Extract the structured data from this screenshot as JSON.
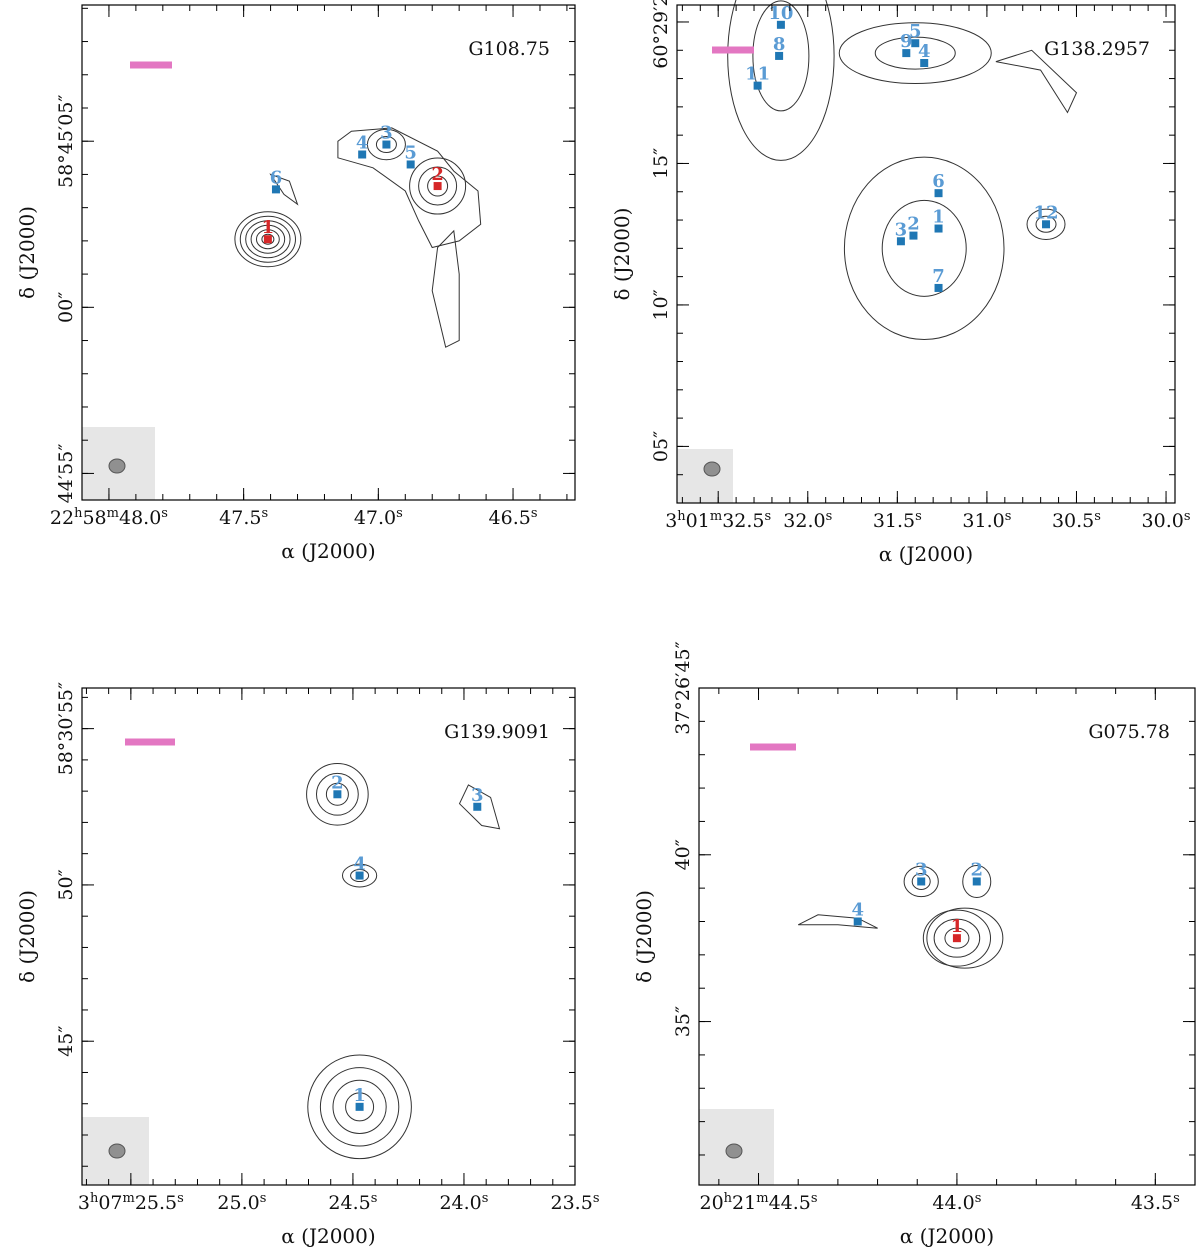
{
  "chart_data": [
    {
      "type": "scatter",
      "title": "G108.75",
      "xlabel": "α (J2000)",
      "ylabel": "δ (J2000)",
      "x_ticks": [
        {
          "value": 48.0,
          "label": "22h58m48.0s"
        },
        {
          "value": 47.5,
          "label": "47.5s"
        },
        {
          "value": 47.0,
          "label": "47.0s"
        },
        {
          "value": 46.5,
          "label": "46.5s"
        }
      ],
      "y_ticks": [
        {
          "value": 5,
          "label": "58°45′05″"
        },
        {
          "value": 0,
          "label": "00″"
        },
        {
          "value": -5,
          "label": "44′55″"
        }
      ],
      "xlim": [
        48.1,
        46.27
      ],
      "ylim": [
        -5.8,
        9.1
      ],
      "x_minor_step": 0.1,
      "y_minor_step": 1,
      "sources": [
        {
          "id": "1",
          "ra": 47.41,
          "dec": 2.05,
          "color": "#d62728"
        },
        {
          "id": "2",
          "ra": 46.78,
          "dec": 3.65,
          "color": "#d62728"
        },
        {
          "id": "3",
          "ra": 46.97,
          "dec": 4.9,
          "color": "#1f77b4"
        },
        {
          "id": "4",
          "ra": 47.06,
          "dec": 4.6,
          "color": "#1f77b4"
        },
        {
          "id": "5",
          "ra": 46.88,
          "dec": 4.3,
          "color": "#1f77b4"
        },
        {
          "id": "6",
          "ra": 47.38,
          "dec": 3.55,
          "color": "#1f77b4"
        }
      ]
    },
    {
      "type": "scatter",
      "title": "G138.2957",
      "xlabel": "α (J2000)",
      "ylabel": "δ (J2000)",
      "x_ticks": [
        {
          "value": 32.5,
          "label": "3h01m32.5s"
        },
        {
          "value": 32.0,
          "label": "32.0s"
        },
        {
          "value": 31.5,
          "label": "31.5s"
        },
        {
          "value": 31.0,
          "label": "31.0s"
        },
        {
          "value": 30.5,
          "label": "30.5s"
        },
        {
          "value": 30.0,
          "label": "30.0s"
        }
      ],
      "y_ticks": [
        {
          "value": 20,
          "label": "60°29′20″"
        },
        {
          "value": 15,
          "label": "15″"
        },
        {
          "value": 10,
          "label": "10″"
        },
        {
          "value": 5,
          "label": "05″"
        }
      ],
      "xlim": [
        32.73,
        29.95
      ],
      "ylim": [
        3.0,
        20.6
      ],
      "x_minor_step": 0.1,
      "y_minor_step": 1,
      "sources": [
        {
          "id": "1",
          "ra": 31.27,
          "dec": 12.7,
          "color": "#1f77b4"
        },
        {
          "id": "2",
          "ra": 31.41,
          "dec": 12.45,
          "color": "#1f77b4"
        },
        {
          "id": "3",
          "ra": 31.48,
          "dec": 12.25,
          "color": "#1f77b4"
        },
        {
          "id": "4",
          "ra": 31.35,
          "dec": 18.55,
          "color": "#1f77b4"
        },
        {
          "id": "5",
          "ra": 31.4,
          "dec": 19.25,
          "color": "#1f77b4"
        },
        {
          "id": "6",
          "ra": 31.27,
          "dec": 13.95,
          "color": "#1f77b4"
        },
        {
          "id": "7",
          "ra": 31.27,
          "dec": 10.6,
          "color": "#1f77b4"
        },
        {
          "id": "8",
          "ra": 32.16,
          "dec": 18.8,
          "color": "#1f77b4"
        },
        {
          "id": "9",
          "ra": 31.45,
          "dec": 18.9,
          "color": "#1f77b4"
        },
        {
          "id": "10",
          "ra": 32.15,
          "dec": 19.9,
          "color": "#1f77b4"
        },
        {
          "id": "11",
          "ra": 32.28,
          "dec": 17.75,
          "color": "#1f77b4"
        },
        {
          "id": "12",
          "ra": 30.67,
          "dec": 12.85,
          "color": "#1f77b4"
        }
      ]
    },
    {
      "type": "scatter",
      "title": "G139.9091",
      "xlabel": "α (J2000)",
      "ylabel": "δ (J2000)",
      "x_ticks": [
        {
          "value": 25.5,
          "label": "3h07m25.5s"
        },
        {
          "value": 25.0,
          "label": "25.0s"
        },
        {
          "value": 24.5,
          "label": "24.5s"
        },
        {
          "value": 24.0,
          "label": "24.0s"
        },
        {
          "value": 23.5,
          "label": "23.5s"
        }
      ],
      "y_ticks": [
        {
          "value": 55,
          "label": "58°30′55″"
        },
        {
          "value": 50,
          "label": "50″"
        },
        {
          "value": 45,
          "label": "45″"
        }
      ],
      "xlim": [
        25.72,
        23.5
      ],
      "ylim": [
        40.4,
        56.3
      ],
      "x_minor_step": 0.1,
      "y_minor_step": 1,
      "sources": [
        {
          "id": "1",
          "ra": 24.47,
          "dec": 42.9,
          "color": "#1f77b4"
        },
        {
          "id": "2",
          "ra": 24.57,
          "dec": 52.9,
          "color": "#1f77b4"
        },
        {
          "id": "3",
          "ra": 23.94,
          "dec": 52.5,
          "color": "#1f77b4"
        },
        {
          "id": "4",
          "ra": 24.47,
          "dec": 50.3,
          "color": "#1f77b4"
        }
      ]
    },
    {
      "type": "scatter",
      "title": "G075.78",
      "xlabel": "α (J2000)",
      "ylabel": "δ (J2000)",
      "x_ticks": [
        {
          "value": 44.5,
          "label": "20h21m44.5s"
        },
        {
          "value": 44.0,
          "label": "44.0s"
        },
        {
          "value": 43.5,
          "label": "43.5s"
        }
      ],
      "y_ticks": [
        {
          "value": 45,
          "label": "37°26′45″"
        },
        {
          "value": 40,
          "label": "40″"
        },
        {
          "value": 35,
          "label": "35″"
        }
      ],
      "xlim": [
        44.65,
        43.4
      ],
      "ylim": [
        30.1,
        45.0
      ],
      "x_minor_step": 0.1,
      "y_minor_step": 1,
      "sources": [
        {
          "id": "1",
          "ra": 44.0,
          "dec": 37.5,
          "color": "#d62728"
        },
        {
          "id": "2",
          "ra": 43.95,
          "dec": 39.2,
          "color": "#1f77b4"
        },
        {
          "id": "3",
          "ra": 44.09,
          "dec": 39.2,
          "color": "#1f77b4"
        },
        {
          "id": "4",
          "ra": 44.25,
          "dec": 38.0,
          "color": "#1f77b4"
        }
      ]
    }
  ],
  "colors": {
    "scale_bar": "#e377c2",
    "beam_box": "#e6e6e6",
    "beam": "#909090",
    "contour": "#333333",
    "label_blue": "#5a9bd4",
    "label_red": "#d62728"
  }
}
